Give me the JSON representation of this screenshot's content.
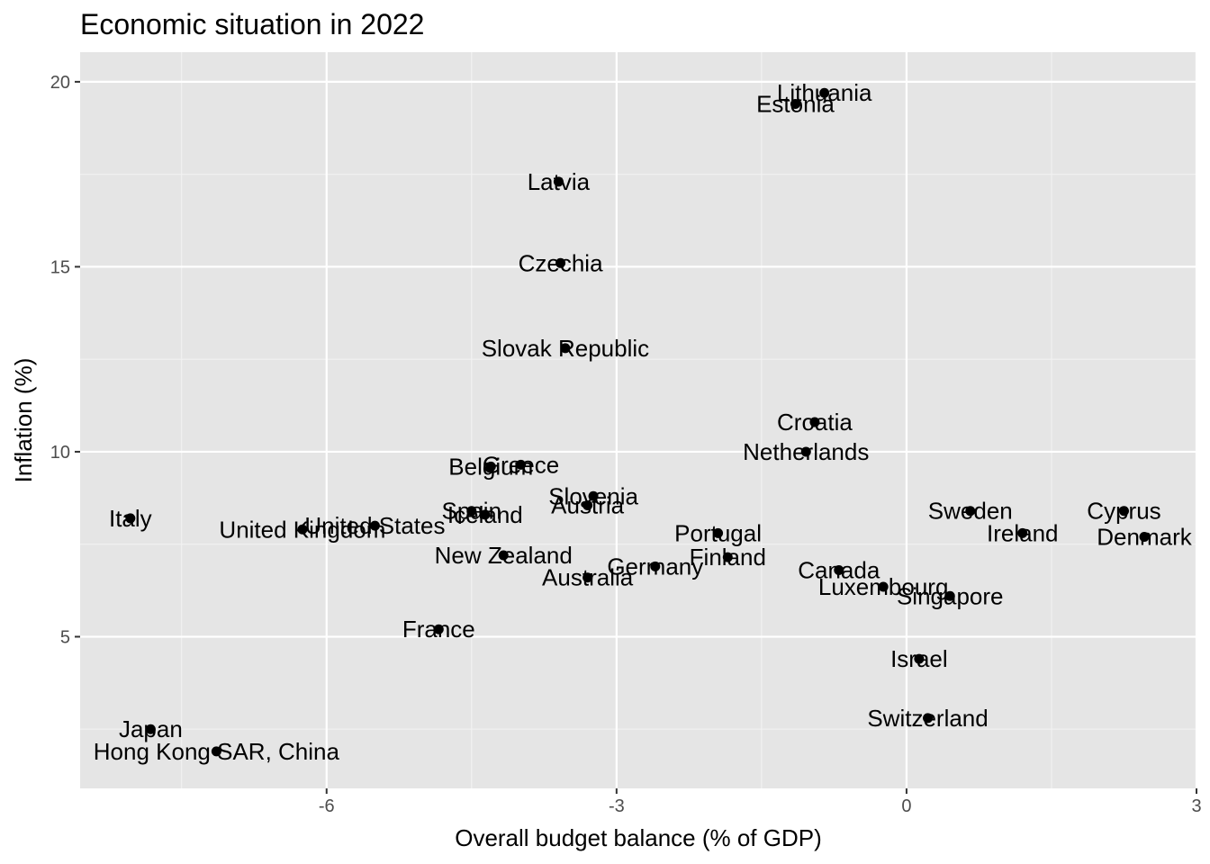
{
  "chart_data": {
    "type": "scatter",
    "title": "Economic situation in 2022",
    "xlabel": "Overall budget balance (% of GDP)",
    "ylabel": "Inflation (%)",
    "xlim": [
      -8.55,
      3.0
    ],
    "ylim": [
      0.9,
      20.8
    ],
    "x_ticks": [
      -6,
      -3,
      0,
      3
    ],
    "x_tick_labels": [
      "-6",
      "-3",
      "0",
      "3"
    ],
    "y_ticks": [
      5,
      10,
      15,
      20
    ],
    "y_tick_labels": [
      "5",
      "10",
      "15",
      "20"
    ],
    "grid": true,
    "legend": "none",
    "points": [
      {
        "label": "Lithuania",
        "x": -0.85,
        "y": 19.7
      },
      {
        "label": "Estonia",
        "x": -1.15,
        "y": 19.4
      },
      {
        "label": "Latvia",
        "x": -3.6,
        "y": 17.3
      },
      {
        "label": "Czechia",
        "x": -3.58,
        "y": 15.1
      },
      {
        "label": "Slovak Republic",
        "x": -3.53,
        "y": 12.8
      },
      {
        "label": "Croatia",
        "x": -0.95,
        "y": 10.8
      },
      {
        "label": "Netherlands",
        "x": -1.04,
        "y": 10.0
      },
      {
        "label": "Greece",
        "x": -3.99,
        "y": 9.65
      },
      {
        "label": "Belgium",
        "x": -4.3,
        "y": 9.6
      },
      {
        "label": "Slovenia",
        "x": -3.24,
        "y": 8.8
      },
      {
        "label": "Austria",
        "x": -3.3,
        "y": 8.55
      },
      {
        "label": "Spain",
        "x": -4.5,
        "y": 8.4
      },
      {
        "label": "Iceland",
        "x": -4.36,
        "y": 8.3
      },
      {
        "label": "Italy",
        "x": -8.03,
        "y": 8.2
      },
      {
        "label": "United States",
        "x": -5.5,
        "y": 8.0
      },
      {
        "label": "United Kingdom",
        "x": -6.25,
        "y": 7.9
      },
      {
        "label": "Sweden",
        "x": 0.66,
        "y": 8.4
      },
      {
        "label": "Cyprus",
        "x": 2.25,
        "y": 8.4
      },
      {
        "label": "Ireland",
        "x": 1.2,
        "y": 7.8
      },
      {
        "label": "Denmark",
        "x": 2.46,
        "y": 7.7
      },
      {
        "label": "Portugal",
        "x": -1.95,
        "y": 7.8
      },
      {
        "label": "New Zealand",
        "x": -4.17,
        "y": 7.2
      },
      {
        "label": "Finland",
        "x": -1.85,
        "y": 7.15
      },
      {
        "label": "Germany",
        "x": -2.6,
        "y": 6.9
      },
      {
        "label": "Canada",
        "x": -0.7,
        "y": 6.8
      },
      {
        "label": "Australia",
        "x": -3.3,
        "y": 6.6
      },
      {
        "label": "Luxembourg",
        "x": -0.24,
        "y": 6.35
      },
      {
        "label": "Singapore",
        "x": 0.45,
        "y": 6.1
      },
      {
        "label": "France",
        "x": -4.84,
        "y": 5.2
      },
      {
        "label": "Israel",
        "x": 0.13,
        "y": 4.4
      },
      {
        "label": "Switzerland",
        "x": 0.22,
        "y": 2.8
      },
      {
        "label": "Japan",
        "x": -7.82,
        "y": 2.5
      },
      {
        "label": "Hong Kong SAR, China",
        "x": -7.14,
        "y": 1.9
      }
    ]
  },
  "colors": {
    "panel_background": "#e5e5e5",
    "grid_major": "#ffffff",
    "grid_minor": "#f2f2f2",
    "point": "#000000",
    "tick_label": "#4d4d4d"
  }
}
